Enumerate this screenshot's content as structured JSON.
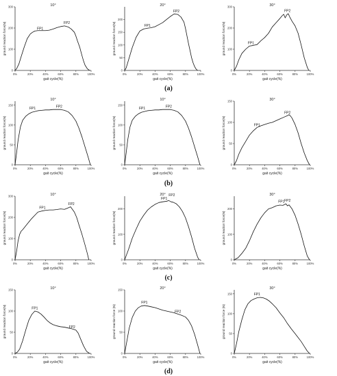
{
  "row_labels": [
    "(a)",
    "(b)",
    "(c)",
    "(d)"
  ],
  "chart_data": [
    {
      "type": "line",
      "title": "10°",
      "xlabel": "gait cycle(%)",
      "ylabel": "ground reaction force(N)",
      "xlim": [
        0,
        100
      ],
      "ylim": [
        0,
        300
      ],
      "xticks": [
        0,
        20,
        40,
        60,
        80,
        100
      ],
      "yticks": [
        0,
        100,
        200,
        300
      ],
      "x": [
        0,
        2,
        5,
        8,
        12,
        16,
        20,
        23,
        26,
        30,
        35,
        40,
        45,
        50,
        55,
        60,
        65,
        70,
        74,
        78,
        80,
        82,
        85,
        88,
        90,
        92,
        95,
        98
      ],
      "series": [
        {
          "values": [
            0,
            8,
            30,
            65,
            110,
            150,
            172,
            180,
            186,
            188,
            188,
            188,
            190,
            195,
            202,
            207,
            210,
            205,
            195,
            180,
            162,
            140,
            110,
            70,
            45,
            25,
            8,
            0
          ]
        }
      ],
      "annotations": [
        {
          "text": "FP1",
          "x": 33,
          "y": 192
        },
        {
          "text": "FP2",
          "x": 68,
          "y": 220
        }
      ]
    },
    {
      "type": "line",
      "title": "20°",
      "xlabel": "gait cycle(%)",
      "ylabel": "ground reaction force(N)",
      "xlim": [
        0,
        100
      ],
      "ylim": [
        0,
        250
      ],
      "xticks": [
        0,
        20,
        40,
        60,
        80,
        100
      ],
      "yticks": [
        0,
        50,
        100,
        150,
        200
      ],
      "x": [
        0,
        2,
        5,
        10,
        15,
        20,
        25,
        30,
        35,
        40,
        45,
        50,
        55,
        60,
        65,
        70,
        74,
        78,
        80,
        82,
        84,
        86,
        88,
        90,
        92,
        94,
        96
      ],
      "series": [
        {
          "values": [
            0,
            10,
            40,
            90,
            130,
            155,
            163,
            166,
            168,
            172,
            180,
            188,
            200,
            212,
            222,
            220,
            210,
            190,
            165,
            135,
            105,
            78,
            50,
            30,
            15,
            5,
            0
          ]
        }
      ],
      "annotations": [
        {
          "text": "FP1",
          "x": 30,
          "y": 172
        },
        {
          "text": "FP2",
          "x": 68,
          "y": 228
        }
      ]
    },
    {
      "type": "line",
      "title": "30°",
      "xlabel": "gait cycle(%)",
      "ylabel": "ground reaction force(N)",
      "xlim": [
        0,
        100
      ],
      "ylim": [
        0,
        300
      ],
      "xticks": [
        0,
        20,
        40,
        60,
        80,
        100
      ],
      "yticks": [
        0,
        100,
        200,
        300
      ],
      "x": [
        0,
        3,
        6,
        10,
        15,
        20,
        25,
        30,
        35,
        40,
        45,
        50,
        55,
        60,
        63,
        65,
        67,
        69,
        71,
        73,
        76,
        80,
        84,
        88,
        92,
        96,
        98
      ],
      "series": [
        {
          "values": [
            0,
            20,
            50,
            80,
            100,
            115,
            118,
            122,
            140,
            155,
            175,
            205,
            225,
            245,
            258,
            265,
            248,
            262,
            268,
            252,
            232,
            210,
            175,
            120,
            60,
            15,
            0
          ]
        }
      ],
      "annotations": [
        {
          "text": "FP1",
          "x": 22,
          "y": 125
        },
        {
          "text": "FP2",
          "x": 70,
          "y": 276
        }
      ]
    },
    {
      "type": "line",
      "title": "10°",
      "xlabel": "gait cycle(%)",
      "ylabel": "ground reaction force(N)",
      "xlim": [
        0,
        100
      ],
      "ylim": [
        0,
        160
      ],
      "xticks": [
        0,
        20,
        40,
        60,
        80,
        100
      ],
      "yticks": [
        0,
        50,
        100,
        150
      ],
      "x": [
        0,
        2,
        4,
        7,
        10,
        14,
        18,
        22,
        26,
        30,
        35,
        40,
        45,
        50,
        55,
        60,
        65,
        70,
        75,
        80,
        84,
        88,
        92,
        96,
        99
      ],
      "series": [
        {
          "values": [
            0,
            30,
            62,
            95,
            112,
            122,
            128,
            132,
            134,
            136,
            137,
            138,
            138,
            139,
            139,
            139,
            137,
            133,
            124,
            110,
            92,
            70,
            45,
            20,
            0
          ]
        }
      ],
      "annotations": [
        {
          "text": "FP1",
          "x": 23,
          "y": 139
        },
        {
          "text": "FP2",
          "x": 58,
          "y": 144
        }
      ]
    },
    {
      "type": "line",
      "title": "10°",
      "xlabel": "gait cycle(%)",
      "ylabel": "ground reaction force(N)",
      "xlim": [
        0,
        100
      ],
      "ylim": [
        0,
        160
      ],
      "xticks": [
        0,
        20,
        40,
        60,
        80,
        100
      ],
      "yticks": [
        0,
        50,
        100,
        150
      ],
      "x": [
        0,
        2,
        4,
        7,
        10,
        14,
        18,
        22,
        26,
        30,
        35,
        40,
        45,
        50,
        55,
        60,
        65,
        70,
        75,
        80,
        84,
        88,
        92,
        96,
        99
      ],
      "series": [
        {
          "values": [
            0,
            30,
            62,
            95,
            112,
            122,
            128,
            132,
            134,
            136,
            137,
            138,
            138,
            139,
            139,
            139,
            137,
            133,
            124,
            110,
            92,
            70,
            45,
            20,
            0
          ]
        }
      ],
      "annotations": [
        {
          "text": "FP1",
          "x": 23,
          "y": 139
        },
        {
          "text": "FP2",
          "x": 58,
          "y": 144
        }
      ]
    },
    {
      "type": "line",
      "title": "30°",
      "xlabel": "gait cycle(%)",
      "ylabel": "ground reaction force(N)",
      "xlim": [
        0,
        100
      ],
      "ylim": [
        0,
        150
      ],
      "xticks": [
        0,
        20,
        40,
        60,
        80,
        100
      ],
      "yticks": [
        0,
        50,
        100,
        150
      ],
      "x": [
        0,
        3,
        6,
        10,
        15,
        20,
        25,
        30,
        35,
        40,
        45,
        50,
        55,
        60,
        65,
        70,
        72,
        74,
        76,
        80,
        84,
        88,
        92,
        96,
        99
      ],
      "series": [
        {
          "values": [
            0,
            10,
            25,
            40,
            55,
            70,
            80,
            88,
            92,
            95,
            98,
            100,
            104,
            108,
            112,
            116,
            118,
            115,
            110,
            95,
            75,
            50,
            28,
            10,
            0
          ]
        }
      ],
      "annotations": [
        {
          "text": "FP1",
          "x": 30,
          "y": 91
        },
        {
          "text": "FP2",
          "x": 70,
          "y": 120
        }
      ]
    },
    {
      "type": "line",
      "title": "10°",
      "xlabel": "gait cycle(%)",
      "ylabel": "ground reaction force(N)",
      "xlim": [
        0,
        100
      ],
      "ylim": [
        0,
        300
      ],
      "xticks": [
        0,
        20,
        40,
        60,
        80,
        100
      ],
      "yticks": [
        0,
        100,
        200,
        300
      ],
      "x": [
        0,
        2,
        4,
        6,
        8,
        10,
        14,
        18,
        22,
        26,
        30,
        35,
        40,
        45,
        50,
        55,
        60,
        65,
        70,
        73,
        75,
        78,
        81,
        84,
        88,
        92,
        95,
        97
      ],
      "series": [
        {
          "values": [
            0,
            40,
            90,
            120,
            135,
            142,
            160,
            178,
            195,
            210,
            225,
            230,
            233,
            235,
            235,
            237,
            240,
            238,
            245,
            250,
            240,
            225,
            200,
            165,
            120,
            70,
            30,
            0
          ]
        }
      ],
      "annotations": [
        {
          "text": "FP1",
          "x": 36,
          "y": 240
        },
        {
          "text": "FP2",
          "x": 74,
          "y": 258
        }
      ]
    },
    {
      "type": "line",
      "title": "20°",
      "xlabel": "gait cycle(%)",
      "ylabel": "ground reaction force(N)",
      "xlim": [
        0,
        100
      ],
      "ylim": [
        0,
        250
      ],
      "xticks": [
        0,
        20,
        40,
        60,
        80,
        100
      ],
      "yticks": [
        0,
        100,
        200
      ],
      "x": [
        0,
        5,
        10,
        15,
        20,
        25,
        30,
        35,
        40,
        45,
        50,
        55,
        58,
        61,
        64,
        68,
        72,
        76,
        80,
        84,
        88,
        92,
        96,
        98
      ],
      "series": [
        {
          "values": [
            0,
            40,
            85,
            120,
            152,
            175,
            195,
            208,
            218,
            225,
            228,
            230,
            233,
            228,
            226,
            220,
            208,
            190,
            165,
            130,
            90,
            45,
            10,
            0
          ]
        }
      ],
      "annotations": [
        {
          "text": "FP1",
          "x": 52,
          "y": 236
        },
        {
          "text": "FP2",
          "x": 62,
          "y": 250
        }
      ]
    },
    {
      "type": "line",
      "title": "30°",
      "xlabel": "gait cycle(%)",
      "ylabel": "ground reaction force(N)",
      "xlim": [
        0,
        100
      ],
      "ylim": [
        0,
        250
      ],
      "xticks": [
        0,
        20,
        40,
        60,
        80,
        100
      ],
      "yticks": [
        0,
        100,
        200
      ],
      "x": [
        0,
        5,
        10,
        15,
        20,
        25,
        30,
        35,
        40,
        45,
        50,
        55,
        60,
        64,
        68,
        70,
        72,
        76,
        80,
        84,
        88,
        92,
        96,
        99
      ],
      "series": [
        {
          "values": [
            0,
            8,
            25,
            45,
            75,
            110,
            140,
            165,
            185,
            200,
            205,
            212,
            215,
            214,
            220,
            212,
            216,
            200,
            175,
            140,
            100,
            55,
            15,
            0
          ]
        }
      ],
      "annotations": [
        {
          "text": "FP1",
          "x": 62,
          "y": 225
        },
        {
          "text": "FP2",
          "x": 70,
          "y": 228
        }
      ]
    },
    {
      "type": "line",
      "title": "10°",
      "xlabel": "gait cycle(%)",
      "ylabel": "ground reaction force(N)",
      "xlim": [
        0,
        100
      ],
      "ylim": [
        0,
        150
      ],
      "xticks": [
        0,
        20,
        40,
        60,
        80,
        100
      ],
      "yticks": [
        0,
        50,
        100,
        150
      ],
      "x": [
        0,
        3,
        6,
        10,
        14,
        18,
        22,
        26,
        30,
        34,
        38,
        42,
        46,
        50,
        55,
        60,
        65,
        70,
        75,
        80,
        83,
        86,
        90,
        94,
        98
      ],
      "series": [
        {
          "values": [
            0,
            3,
            10,
            30,
            55,
            78,
            92,
            100,
            98,
            93,
            86,
            78,
            72,
            68,
            65,
            63,
            62,
            60,
            58,
            55,
            48,
            35,
            18,
            5,
            0
          ]
        }
      ],
      "annotations": [
        {
          "text": "FP1",
          "x": 26,
          "y": 104
        },
        {
          "text": "FP2",
          "x": 75,
          "y": 60
        }
      ]
    },
    {
      "type": "line",
      "title": "20°",
      "xlabel": "gait cycle(%)",
      "ylabel": "ground reaction force (N)",
      "xlim": [
        0,
        100
      ],
      "ylim": [
        0,
        150
      ],
      "xticks": [
        0,
        20,
        40,
        60,
        80,
        100
      ],
      "yticks": [
        0,
        50,
        100,
        150
      ],
      "x": [
        0,
        3,
        6,
        10,
        14,
        18,
        22,
        26,
        30,
        35,
        40,
        45,
        50,
        55,
        60,
        65,
        70,
        75,
        80,
        84,
        88,
        92,
        96,
        99
      ],
      "series": [
        {
          "values": [
            0,
            30,
            60,
            85,
            100,
            108,
            112,
            113,
            112,
            110,
            108,
            105,
            102,
            100,
            98,
            96,
            93,
            90,
            86,
            78,
            65,
            45,
            20,
            0
          ]
        }
      ],
      "annotations": [
        {
          "text": "FP1",
          "x": 26,
          "y": 118
        },
        {
          "text": "FP2",
          "x": 70,
          "y": 96
        }
      ]
    },
    {
      "type": "line",
      "title": "30°",
      "xlabel": "gait cycle(%)",
      "ylabel": "ground reaction force (N)",
      "xlim": [
        0,
        100
      ],
      "ylim": [
        0,
        160
      ],
      "xticks": [
        0,
        20,
        40,
        60,
        80,
        100
      ],
      "yticks": [
        0,
        50,
        100,
        150
      ],
      "x": [
        0,
        3,
        6,
        10,
        14,
        18,
        22,
        26,
        30,
        34,
        38,
        42,
        46,
        50,
        55,
        60,
        65,
        70,
        75,
        80,
        84,
        88,
        92,
        96,
        99
      ],
      "series": [
        {
          "values": [
            0,
            25,
            55,
            85,
            110,
            125,
            133,
            137,
            140,
            141,
            140,
            137,
            132,
            125,
            115,
            102,
            90,
            75,
            62,
            50,
            40,
            30,
            18,
            6,
            0
          ]
        }
      ],
      "annotations": [
        {
          "text": "FP1",
          "x": 30,
          "y": 146
        }
      ]
    }
  ]
}
